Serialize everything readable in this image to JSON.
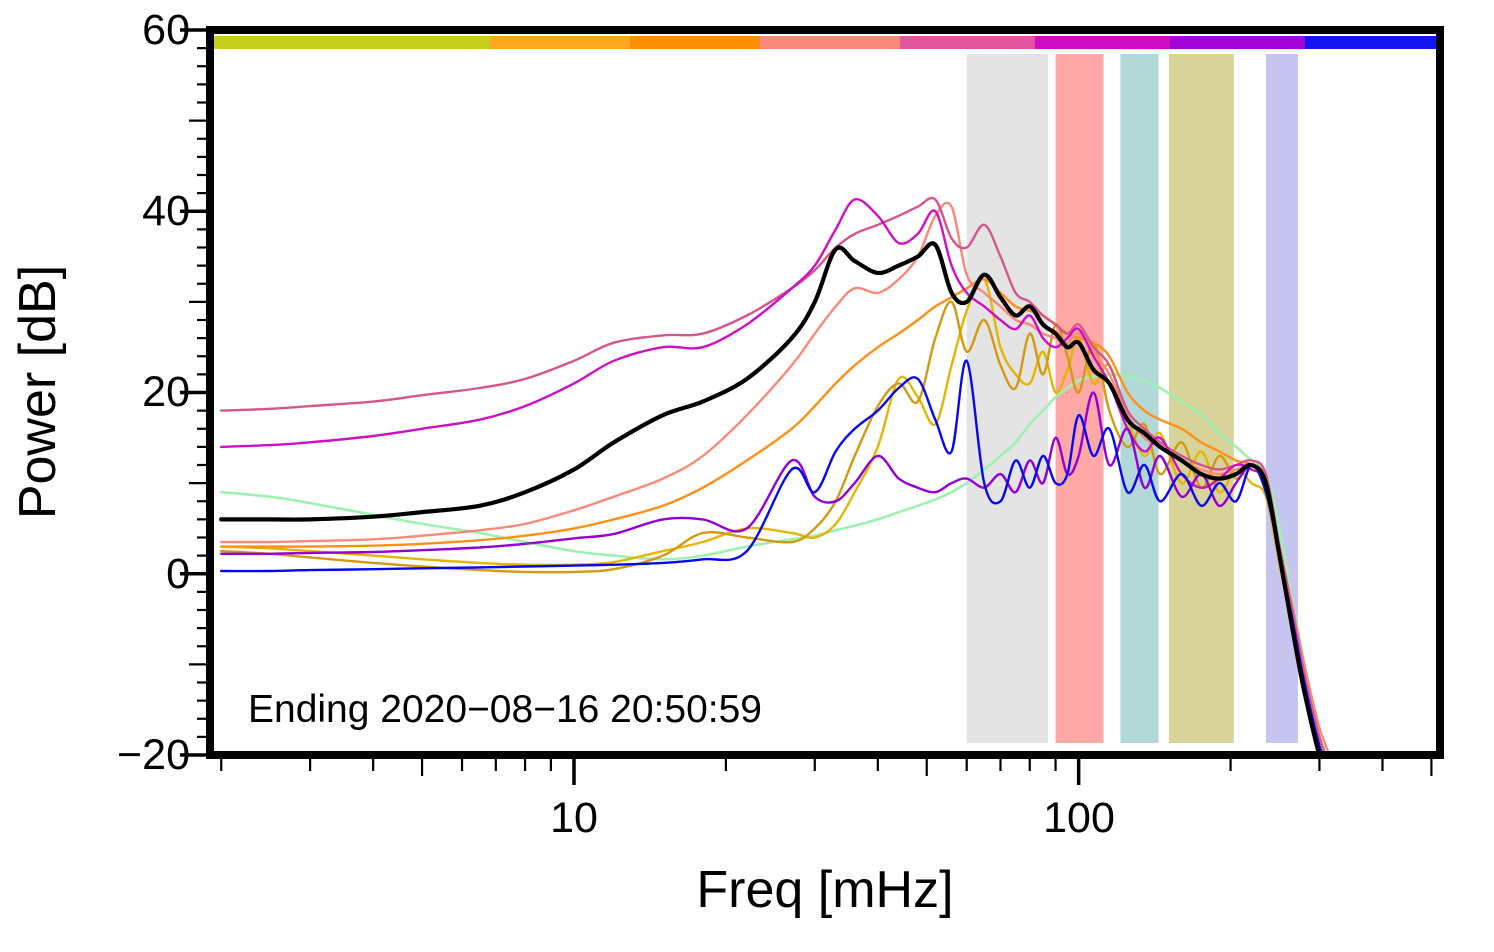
{
  "figure": {
    "annotation": "Ending 2020−08−16 20:50:59",
    "axes": {
      "xlabel": "Freq [mHz]",
      "ylabel": "Power [dB]",
      "x_scale": "log",
      "x_range": [
        1.9,
        520
      ],
      "y_range": [
        -20,
        60
      ],
      "x_tick_labels": [
        "10",
        "100"
      ],
      "y_tick_labels": [
        "60",
        "40",
        "20",
        "0",
        "−20"
      ]
    }
  },
  "bands": [
    {
      "name": "gray",
      "f0_mHz": 60,
      "f1_mHz": 87,
      "color": "#e4e4e4"
    },
    {
      "name": "red",
      "f0_mHz": 90,
      "f1_mHz": 112,
      "color": "#ffa8a8"
    },
    {
      "name": "teal",
      "f0_mHz": 121,
      "f1_mHz": 144,
      "color": "#b2d8d8"
    },
    {
      "name": "khaki",
      "f0_mHz": 151,
      "f1_mHz": 203,
      "color": "#d8d39a"
    },
    {
      "name": "lavender",
      "f0_mHz": 235,
      "f1_mHz": 272,
      "color": "#c5c5ef"
    }
  ],
  "colorbar": {
    "segments": [
      {
        "from": 0.0,
        "to": 0.2276,
        "color": "#c6ce1e"
      },
      {
        "from": 0.2276,
        "to": 0.3415,
        "color": "#ffa81e"
      },
      {
        "from": 0.3415,
        "to": 0.4472,
        "color": "#fe8f05"
      },
      {
        "from": 0.4472,
        "to": 0.561,
        "color": "#f9897b"
      },
      {
        "from": 0.561,
        "to": 0.6707,
        "color": "#e0559c"
      },
      {
        "from": 0.6707,
        "to": 0.7805,
        "color": "#cf0dc6"
      },
      {
        "from": 0.7805,
        "to": 0.8902,
        "color": "#a203d6"
      },
      {
        "from": 0.8902,
        "to": 1.0,
        "color": "#1414f0"
      }
    ]
  },
  "chart_data": {
    "type": "line",
    "title": "",
    "xlabel": "Freq [mHz]",
    "ylabel": "Power [dB]",
    "x_scale": "log",
    "xlim": [
      1.9,
      520
    ],
    "ylim": [
      -20,
      60
    ],
    "grid": false,
    "legend": "none",
    "x_mHz": [
      2,
      2.5,
      3,
      4,
      5,
      6.5,
      8,
      10,
      12,
      15,
      18,
      22,
      27,
      30,
      33,
      36,
      40,
      44,
      48,
      52,
      56,
      60,
      65,
      70,
      75,
      80,
      85,
      90,
      95,
      100,
      107,
      115,
      125,
      135,
      145,
      160,
      175,
      190,
      205,
      220,
      235,
      250,
      265,
      280,
      300,
      320
    ],
    "series": [
      {
        "name": "palegreen",
        "color": "#9ef2b0",
        "width": 2.6,
        "y_dB": [
          9,
          8.5,
          7.8,
          6.5,
          5.5,
          4.5,
          3.5,
          2.5,
          2,
          1.6,
          2,
          3,
          3.8,
          4.2,
          4.8,
          5.3,
          6,
          6.8,
          7.5,
          8.2,
          9,
          10,
          11.5,
          13,
          14.5,
          16.5,
          18,
          19.5,
          20.5,
          21.3,
          21.8,
          22,
          21.8,
          21.3,
          20.5,
          19,
          17.5,
          15.5,
          14,
          12.5,
          11,
          5,
          -3,
          -10,
          -18,
          -23
        ]
      },
      {
        "name": "gold",
        "color": "#e3b505",
        "width": 2.4,
        "y_dB": [
          3,
          2.8,
          2.5,
          2,
          1.6,
          1.2,
          1,
          1,
          1.3,
          2.5,
          3.5,
          5,
          4.5,
          4,
          5.5,
          9,
          14,
          21.5,
          19.5,
          16.5,
          23,
          29,
          32.5,
          25,
          22,
          21,
          24.5,
          20,
          22.5,
          26,
          21,
          23,
          17,
          13,
          15.5,
          10,
          13.5,
          9,
          11.5,
          10,
          8.5,
          1,
          -6,
          -13,
          -20,
          -24
        ]
      },
      {
        "name": "goldenrod",
        "color": "#d29a10",
        "width": 2.4,
        "y_dB": [
          2.5,
          2.2,
          1.8,
          1.2,
          0.8,
          0.4,
          0.2,
          0.2,
          0.5,
          2,
          4.5,
          4,
          3.5,
          5,
          8,
          13,
          18.5,
          21,
          19,
          26,
          30,
          24.5,
          28,
          23,
          20.5,
          26.5,
          22,
          27.5,
          24,
          20,
          25.5,
          18,
          14,
          16.5,
          11,
          14.5,
          9.5,
          13,
          10.5,
          12,
          9,
          2,
          -5,
          -12,
          -19,
          -23
        ]
      },
      {
        "name": "orange",
        "color": "#ff9015",
        "width": 2.4,
        "y_dB": [
          3,
          3,
          3,
          3.1,
          3.3,
          3.7,
          4.2,
          5,
          6,
          7.5,
          9.5,
          12.5,
          16,
          18.5,
          21,
          23,
          25,
          26.5,
          28,
          29.5,
          30.5,
          31.5,
          32.5,
          31,
          29.5,
          29,
          28.5,
          27.5,
          26.5,
          26,
          25.5,
          24,
          20,
          18,
          17,
          16,
          14.5,
          13.5,
          12.5,
          12,
          10,
          3,
          -4,
          -11,
          -18,
          -22
        ]
      },
      {
        "name": "salmon",
        "color": "#f98a78",
        "width": 2.4,
        "y_dB": [
          3.5,
          3.5,
          3.6,
          3.8,
          4.2,
          4.8,
          5.5,
          7,
          8.5,
          10.5,
          13,
          17.5,
          23,
          26.5,
          29.5,
          31.5,
          31,
          32.5,
          35,
          39.5,
          40.5,
          33,
          31,
          29.5,
          28,
          27.5,
          26.5,
          26,
          25.5,
          26.5,
          24.5,
          22,
          17.5,
          15,
          14,
          12.5,
          11.5,
          11,
          11.5,
          12,
          10.5,
          3,
          -3.5,
          -10,
          -17,
          -21
        ]
      },
      {
        "name": "palevioletred",
        "color": "#d5568c",
        "width": 2.4,
        "y_dB": [
          18,
          18.2,
          18.5,
          19,
          19.7,
          20.5,
          21.5,
          23.5,
          25.5,
          26.3,
          26.5,
          28.5,
          31.5,
          33.5,
          36,
          37.5,
          38.5,
          39.5,
          40.5,
          41.3,
          37,
          36,
          38.5,
          35,
          31,
          30,
          28.5,
          27.5,
          26.5,
          27.5,
          25,
          23,
          18,
          16,
          14.5,
          13,
          12,
          11.5,
          12,
          12.5,
          11,
          3,
          -4,
          -11,
          -18,
          -22
        ]
      },
      {
        "name": "magenta",
        "color": "#ce10c4",
        "width": 2.4,
        "y_dB": [
          14,
          14.2,
          14.5,
          15.2,
          16,
          17,
          18.5,
          21,
          23.5,
          25,
          25,
          27.5,
          31.5,
          34,
          38,
          41.3,
          39.5,
          36.5,
          37.5,
          40,
          34,
          31,
          29.5,
          28,
          27,
          28.5,
          26,
          25,
          26,
          27,
          24,
          21,
          16,
          13.5,
          15,
          11,
          9.5,
          10.5,
          12,
          11.5,
          10,
          2,
          -5,
          -12,
          -19,
          -23
        ]
      },
      {
        "name": "darkviolet",
        "color": "#9400d3",
        "width": 2.4,
        "y_dB": [
          2.2,
          2.2,
          2.3,
          2.4,
          2.6,
          2.9,
          3.3,
          3.9,
          4.4,
          6,
          6,
          5,
          12.5,
          8.5,
          8,
          10,
          13,
          10.5,
          9.5,
          9,
          10,
          10.5,
          9.5,
          11,
          9,
          12.5,
          10,
          15,
          11,
          13,
          20,
          12,
          16,
          9.5,
          13,
          8.5,
          11,
          7.5,
          10,
          12,
          9.5,
          2,
          -5.5,
          -12.5,
          -19,
          -23
        ]
      },
      {
        "name": "blue",
        "color": "#0808ee",
        "width": 2.4,
        "y_dB": [
          0.3,
          0.3,
          0.4,
          0.5,
          0.6,
          0.7,
          0.8,
          0.9,
          1,
          1.2,
          1.6,
          2.5,
          11.5,
          9,
          13.5,
          16,
          18,
          20.5,
          21.5,
          17,
          13.5,
          23.5,
          10,
          8,
          12.5,
          9.5,
          13,
          10,
          11,
          17.5,
          13,
          16,
          9,
          12,
          8,
          11,
          7.5,
          10,
          8,
          12,
          9,
          2,
          -5,
          -12,
          -19,
          -23
        ]
      },
      {
        "name": "mean-black",
        "color": "#000000",
        "width": 4.2,
        "y_dB": [
          6,
          6,
          6,
          6.3,
          6.8,
          7.5,
          9,
          11.5,
          14.5,
          17.5,
          19,
          21.5,
          26,
          30,
          35.8,
          34.5,
          33.2,
          34,
          35,
          36.3,
          31,
          30,
          33,
          30.5,
          28.5,
          29.5,
          27.5,
          26.5,
          25,
          25.5,
          22.5,
          21,
          17,
          15.5,
          14,
          12.5,
          11,
          10.5,
          11,
          12,
          10,
          2,
          -6,
          -13,
          -20,
          -24
        ]
      }
    ]
  }
}
